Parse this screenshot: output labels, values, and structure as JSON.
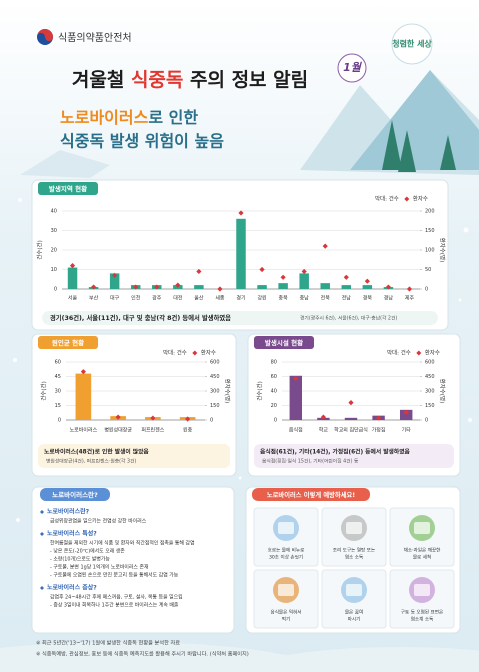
{
  "header": {
    "agency": "식품의약품안전처",
    "slogan": "청렴한 세상",
    "title_parts": [
      "겨울철 ",
      "식중독",
      " 주의 정보 알림"
    ],
    "badge": "1월",
    "subtitle_parts": [
      "노로바이러스",
      "로 인한"
    ],
    "subtitle_line2": "식중독 발생 위험이 높음"
  },
  "chart_data": [
    {
      "type": "bar",
      "title": "발생지역 현황",
      "ylabel": "건수(건)",
      "y2label": "환자수(명)",
      "legend": "top-right",
      "grid": true,
      "categories": [
        "서울",
        "부산",
        "대구",
        "인천",
        "광주",
        "대전",
        "울산",
        "세종",
        "경기",
        "강원",
        "충북",
        "충남",
        "전북",
        "전남",
        "경북",
        "경남",
        "제주"
      ],
      "series": [
        {
          "name": "막대: 건수",
          "color": "#2fa58c",
          "values": [
            11,
            1,
            8,
            2,
            2,
            2,
            2,
            0,
            36,
            2,
            3,
            8,
            3,
            2,
            2,
            1,
            0
          ]
        },
        {
          "name": "환자수",
          "color": "#d9383a",
          "marker": "diamond",
          "axis": "y2",
          "values": [
            60,
            5,
            35,
            5,
            5,
            10,
            45,
            0,
            195,
            50,
            30,
            45,
            110,
            30,
            20,
            5,
            0
          ]
        }
      ],
      "ylim": [
        0,
        40
      ],
      "yticks": [
        0,
        10,
        20,
        30,
        40
      ],
      "y2lim": [
        0,
        200
      ],
      "y2ticks": [
        0,
        50,
        100,
        150,
        200
      ],
      "notes": [
        "경기(36건), 서울(11건), 대구 및 충남(각 8건) 등에서 발생하였음",
        "경기(광주시 6건), 서울(6건), 대구·충남(각 2건)"
      ]
    },
    {
      "type": "bar",
      "title": "원인균 현황",
      "ylabel": "건수(건)",
      "y2label": "환자수(명)",
      "legend": "top-right",
      "grid": true,
      "categories": [
        "노로바이러스",
        "병원성대장균",
        "퍼프린젠스",
        "원충"
      ],
      "series": [
        {
          "name": "막대: 건수",
          "color": "#f0a030",
          "values": [
            48,
            4,
            3,
            3
          ]
        },
        {
          "name": "환자수",
          "color": "#d9383a",
          "marker": "diamond",
          "axis": "y2",
          "values": [
            500,
            30,
            20,
            10
          ]
        }
      ],
      "ylim": [
        0,
        60
      ],
      "yticks": [
        0,
        15,
        30,
        45,
        60
      ],
      "y2lim": [
        0,
        600
      ],
      "y2ticks": [
        0,
        150,
        300,
        450,
        600
      ],
      "notes": [
        "노로바이러스(48건)로 인한 발생이 많았음",
        "병원성대장균(4건), 퍼프린젠스·원충(각 3건)"
      ]
    },
    {
      "type": "bar",
      "title": "발생시설 현황",
      "ylabel": "건수(건)",
      "y2label": "환자수(명)",
      "legend": "top-right",
      "grid": true,
      "categories": [
        "음식점",
        "학교",
        "학교외 집단급식",
        "가정집",
        "기타"
      ],
      "series": [
        {
          "name": "막대: 건수",
          "color": "#7a4b8c",
          "values": [
            61,
            3,
            3,
            6,
            14
          ]
        },
        {
          "name": "환자수",
          "color": "#d9383a",
          "marker": "diamond",
          "axis": "y2",
          "values": [
            430,
            30,
            180,
            20,
            80
          ]
        }
      ],
      "ylim": [
        0,
        80
      ],
      "yticks": [
        0,
        20,
        40,
        60,
        80
      ],
      "y2lim": [
        0,
        600
      ],
      "y2ticks": [
        0,
        150,
        300,
        450,
        600
      ],
      "notes": [
        "음식점(61건), 기타(14건), 가정집(6건) 등에서 발생하였음",
        "음식점(횟집·일식 15건), 기타(어린이집 4건) 등"
      ]
    }
  ],
  "info": {
    "title": "노로바이러스란?",
    "sections": [
      {
        "heading": "노로바이러스란?",
        "lines": [
          "급성위장관염을 일으키는 전염성 강한 바이러스"
        ]
      },
      {
        "heading": "노로바이러스 특성?",
        "lines": [
          "한여름철을 제외한 시기에 식품 및 환자와 직간접적인 접촉을 통해 감염",
          "- 낮은 온도(-20℃)에서도 오래 생존",
          "- 소량(10개)으로도 발병가능",
          "- 구토물, 분변 1g당 1억개의 노로바이러스 존재",
          "- 구토물에 오염된 손으로 만진 문고리 등을 통해서도 감염 가능"
        ]
      },
      {
        "heading": "노로바이러스 증상?",
        "lines": [
          "감염후 24~48시간 후에 메스꺼움, 구토, 설사, 복통 등을 일으킴",
          "- 증상 3일이내 회복하나 1주간 분변으로 바이러스는 계속 배출"
        ]
      }
    ]
  },
  "prevention": {
    "title": "노로바이러스 이렇게 예방하세요!",
    "tips": [
      [
        "흐르는 물에 비누로",
        "30초 이상 손씻기"
      ],
      [
        "조리 도구는 열탕 또는",
        "염소 소독"
      ],
      [
        "채소·과일은 깨끗한",
        "물로 세척"
      ],
      [
        "음식물은 익혀서",
        "먹기"
      ],
      [
        "물은 끓여",
        "마시기"
      ],
      [
        "구토 등 오염된 표면은",
        "염소계 소독"
      ]
    ]
  },
  "footer": [
    "※ 최근 5년간('13~'17) 1월에 발생한 식중독 현황을 분석한 자료",
    "※ 식중독예방, 관심정보, 홍보 등에 식중독 예측지도를 활용해 주시기 바랍니다. (식약처 홈페이지)"
  ]
}
